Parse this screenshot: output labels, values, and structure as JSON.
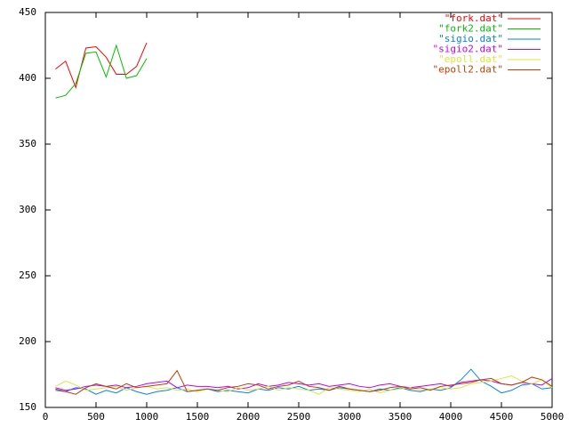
{
  "chart_data": {
    "type": "line",
    "xlim": [
      0,
      5000
    ],
    "ylim": [
      150,
      450
    ],
    "xticks": [
      0,
      500,
      1000,
      1500,
      2000,
      2500,
      3000,
      3500,
      4000,
      4500,
      5000
    ],
    "yticks": [
      150,
      200,
      250,
      300,
      350,
      400,
      450
    ],
    "legend": "top-right",
    "series": [
      {
        "name": "\"fork.dat\"",
        "color": "#ff0000",
        "x": [
          100,
          200,
          300,
          400,
          500,
          600,
          700,
          800,
          900,
          1000
        ],
        "values": [
          407,
          413,
          393,
          423,
          424,
          416,
          403,
          403,
          409,
          427
        ]
      },
      {
        "name": "\"fork2.dat\"",
        "color": "#00c000",
        "x": [
          100,
          200,
          300,
          400,
          500,
          600,
          700,
          800,
          900,
          1000
        ],
        "values": [
          385,
          387,
          396,
          419,
          420,
          401,
          425,
          400,
          402,
          415
        ]
      },
      {
        "name": "\"sigio.dat\"",
        "color": "#0080ff",
        "x": [
          100,
          200,
          300,
          400,
          500,
          600,
          700,
          800,
          900,
          1000,
          1100,
          1200,
          1300,
          1400,
          1500,
          1600,
          1700,
          1800,
          1900,
          2000,
          2100,
          2200,
          2300,
          2400,
          2500,
          2600,
          2700,
          2800,
          2900,
          3000,
          3100,
          3200,
          3300,
          3400,
          3500,
          3600,
          3700,
          3800,
          3900,
          4000,
          4100,
          4200,
          4300,
          4400,
          4500,
          4600,
          4700,
          4800,
          4900,
          5000
        ],
        "values": [
          163,
          162,
          165,
          164,
          160,
          163,
          161,
          165,
          162,
          160,
          162,
          163,
          165,
          162,
          163,
          164,
          162,
          163,
          162,
          161,
          164,
          163,
          165,
          164,
          166,
          163,
          164,
          163,
          165,
          164,
          163,
          162,
          164,
          163,
          165,
          163,
          162,
          164,
          163,
          165,
          171,
          179,
          170,
          166,
          161,
          163,
          167,
          168,
          164,
          165
        ]
      },
      {
        "name": "\"sigio2.dat\"",
        "color": "#c000ff",
        "x": [
          100,
          200,
          300,
          400,
          500,
          600,
          700,
          800,
          900,
          1000,
          1100,
          1200,
          1300,
          1400,
          1500,
          1600,
          1700,
          1800,
          1900,
          2000,
          2100,
          2200,
          2300,
          2400,
          2500,
          2600,
          2700,
          2800,
          2900,
          3000,
          3100,
          3200,
          3300,
          3400,
          3500,
          3600,
          3700,
          3800,
          3900,
          4000,
          4100,
          4200,
          4300,
          4400,
          4500,
          4600,
          4700,
          4800,
          4900,
          5000
        ],
        "values": [
          165,
          163,
          164,
          166,
          167,
          166,
          167,
          165,
          166,
          168,
          169,
          170,
          165,
          167,
          166,
          166,
          165,
          166,
          164,
          165,
          168,
          166,
          167,
          169,
          168,
          167,
          168,
          166,
          167,
          168,
          166,
          165,
          167,
          168,
          166,
          165,
          166,
          167,
          168,
          166,
          169,
          170,
          171,
          170,
          168,
          167,
          169,
          168,
          167,
          172
        ]
      },
      {
        "name": "\"epoll.dat\"",
        "color": "#d8e840",
        "x": [
          100,
          200,
          300,
          400,
          500,
          600,
          700,
          800,
          900,
          1000,
          1100,
          1200,
          1300,
          1400,
          1500,
          1600,
          1700,
          1800,
          1900,
          2000,
          2100,
          2200,
          2300,
          2400,
          2500,
          2600,
          2700,
          2800,
          2900,
          3000,
          3100,
          3200,
          3300,
          3400,
          3500,
          3600,
          3700,
          3800,
          3900,
          4000,
          4100,
          4200,
          4300,
          4400,
          4500,
          4600,
          4700,
          4800,
          4900,
          5000
        ],
        "values": [
          166,
          170,
          167,
          163,
          164,
          165,
          166,
          163,
          165,
          166,
          164,
          165,
          163,
          164,
          162,
          164,
          163,
          162,
          165,
          163,
          164,
          166,
          163,
          165,
          164,
          163,
          160,
          165,
          164,
          163,
          162,
          164,
          161,
          163,
          164,
          165,
          163,
          164,
          165,
          164,
          165,
          168,
          169,
          170,
          172,
          174,
          170,
          168,
          171,
          165
        ]
      },
      {
        "name": "\"epoll2.dat\"",
        "color": "#c04000",
        "x": [
          100,
          200,
          300,
          400,
          500,
          600,
          700,
          800,
          900,
          1000,
          1100,
          1200,
          1300,
          1400,
          1500,
          1600,
          1700,
          1800,
          1900,
          2000,
          2100,
          2200,
          2300,
          2400,
          2500,
          2600,
          2700,
          2800,
          2900,
          3000,
          3100,
          3200,
          3300,
          3400,
          3500,
          3600,
          3700,
          3800,
          3900,
          4000,
          4100,
          4200,
          4300,
          4400,
          4500,
          4600,
          4700,
          4800,
          4900,
          5000
        ],
        "values": [
          164,
          162,
          160,
          165,
          168,
          166,
          164,
          168,
          165,
          166,
          167,
          168,
          178,
          162,
          163,
          164,
          163,
          165,
          166,
          168,
          167,
          164,
          166,
          167,
          170,
          166,
          165,
          163,
          166,
          164,
          163,
          162,
          163,
          165,
          166,
          164,
          165,
          163,
          166,
          167,
          168,
          169,
          171,
          172,
          168,
          167,
          169,
          173,
          171,
          166
        ]
      }
    ]
  }
}
